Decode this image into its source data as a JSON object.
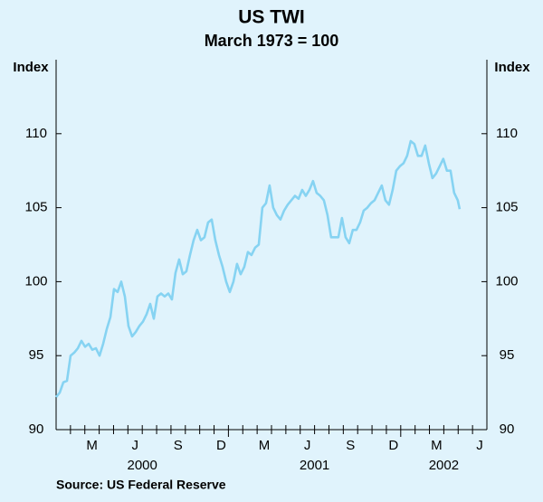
{
  "chart_data": {
    "type": "line",
    "title": "US TWI",
    "subtitle": "March 1973 = 100",
    "y_axis_label": "Index",
    "y2_axis_label": "Index",
    "source": "Source: US Federal Reserve",
    "ylim": [
      90,
      115
    ],
    "yticks": [
      90,
      95,
      100,
      105,
      110
    ],
    "xlim": [
      2000,
      2002.5
    ],
    "xticks": [
      {
        "value": 2000.208,
        "label": "M"
      },
      {
        "value": 2000.458,
        "label": "J"
      },
      {
        "value": 2000.708,
        "label": "S"
      },
      {
        "value": 2000.958,
        "label": "D"
      },
      {
        "value": 2001.208,
        "label": "M"
      },
      {
        "value": 2001.458,
        "label": "J"
      },
      {
        "value": 2001.708,
        "label": "S"
      },
      {
        "value": 2001.958,
        "label": "D"
      },
      {
        "value": 2002.208,
        "label": "M"
      },
      {
        "value": 2002.458,
        "label": "J"
      }
    ],
    "year_labels": [
      {
        "value": 2000.5,
        "label": "2000"
      },
      {
        "value": 2001.5,
        "label": "2001"
      },
      {
        "value": 2002.25,
        "label": "2002"
      }
    ],
    "x": [
      2000,
      2000.021,
      2000.042,
      2000.063,
      2000.084,
      2000.105,
      2000.126,
      2000.147,
      2000.168,
      2000.189,
      2000.21,
      2000.231,
      2000.252,
      2000.273,
      2000.294,
      2000.315,
      2000.336,
      2000.357,
      2000.378,
      2000.399,
      2000.42,
      2000.441,
      2000.462,
      2000.483,
      2000.504,
      2000.525,
      2000.546,
      2000.567,
      2000.588,
      2000.609,
      2000.63,
      2000.651,
      2000.672,
      2000.693,
      2000.714,
      2000.735,
      2000.756,
      2000.777,
      2000.798,
      2000.819,
      2000.84,
      2000.861,
      2000.882,
      2000.903,
      2000.924,
      2000.945,
      2000.966,
      2000.987,
      2001.008,
      2001.029,
      2001.05,
      2001.071,
      2001.092,
      2001.113,
      2001.134,
      2001.155,
      2001.176,
      2001.197,
      2001.218,
      2001.239,
      2001.26,
      2001.281,
      2001.302,
      2001.323,
      2001.344,
      2001.365,
      2001.386,
      2001.407,
      2001.428,
      2001.449,
      2001.47,
      2001.491,
      2001.512,
      2001.533,
      2001.554,
      2001.575,
      2001.596,
      2001.617,
      2001.638,
      2001.659,
      2001.68,
      2001.701,
      2001.722,
      2001.743,
      2001.764,
      2001.785,
      2001.806,
      2001.827,
      2001.848,
      2001.869,
      2001.89,
      2001.911,
      2001.932,
      2001.953,
      2001.974,
      2001.995,
      2002.016,
      2002.037,
      2002.058,
      2002.079,
      2002.1,
      2002.121,
      2002.142,
      2002.163,
      2002.184,
      2002.205,
      2002.226,
      2002.247,
      2002.268,
      2002.289,
      2002.31,
      2002.331,
      2002.342
    ],
    "series": [
      {
        "name": "US TWI",
        "color": "#86d3f2",
        "values": [
          92.2,
          92.5,
          93.2,
          93.3,
          95.0,
          95.2,
          95.5,
          96.0,
          95.6,
          95.8,
          95.4,
          95.5,
          95.0,
          95.8,
          96.8,
          97.6,
          99.5,
          99.3,
          100.0,
          99.0,
          97.0,
          96.3,
          96.6,
          97.0,
          97.3,
          97.8,
          98.5,
          97.5,
          99.0,
          99.2,
          99.0,
          99.2,
          98.8,
          100.6,
          101.5,
          100.5,
          100.7,
          101.8,
          102.8,
          103.5,
          102.8,
          103.0,
          104.0,
          104.2,
          102.8,
          101.8,
          101.0,
          100.0,
          99.3,
          100.0,
          101.2,
          100.5,
          101.0,
          102.0,
          101.8,
          102.3,
          102.5,
          105.0,
          105.3,
          106.5,
          105.0,
          104.5,
          104.2,
          104.8,
          105.2,
          105.5,
          105.8,
          105.6,
          106.2,
          105.8,
          106.2,
          106.8,
          106.0,
          105.8,
          105.5,
          104.5,
          103.0,
          103.0,
          103.0,
          104.3,
          103.0,
          102.6,
          103.5,
          103.5,
          104.0,
          104.8,
          105.0,
          105.3,
          105.5,
          106.0,
          106.5,
          105.5,
          105.2,
          106.2,
          107.5,
          107.8,
          108.0,
          108.5,
          109.5,
          109.3,
          108.5,
          108.5,
          109.2,
          108.0,
          107.0,
          107.3,
          107.8,
          108.3,
          107.5,
          107.5,
          106.0,
          105.5,
          104.9
        ]
      }
    ]
  }
}
